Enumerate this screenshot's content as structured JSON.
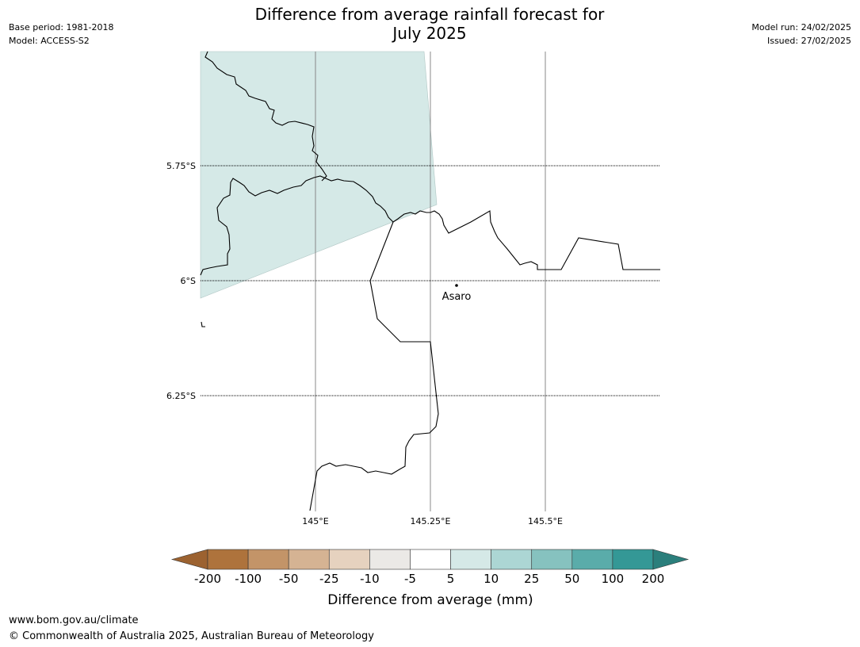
{
  "title_line1": "Difference from average rainfall forecast for",
  "title_line2": "July 2025",
  "meta_left": {
    "base_period": "Base period: 1981-2018",
    "model": "Model: ACCESS-S2"
  },
  "meta_right": {
    "model_run": "Model run: 24/02/2025",
    "issued": "Issued: 27/02/2025"
  },
  "map": {
    "lat_labels": [
      "5.75°S",
      "6°S",
      "6.25°S"
    ],
    "lon_labels": [
      "145°E",
      "145.25°E",
      "145.5°E"
    ],
    "place": "Asaro",
    "forecast_fill": "#d5e9e7"
  },
  "colorbar": {
    "label": "Difference from average (mm)",
    "ticks": [
      "-200",
      "-100",
      "-50",
      "-25",
      "-10",
      "-5",
      "5",
      "10",
      "25",
      "50",
      "100",
      "200"
    ],
    "colors": [
      "#9c6230",
      "#ae733c",
      "#c39468",
      "#d5b393",
      "#e6d2bf",
      "#ebe9e6",
      "#ffffff",
      "#d5e9e7",
      "#acd6d4",
      "#86c2bf",
      "#5aacaa",
      "#349896",
      "#2b7f7c"
    ]
  },
  "footer": {
    "url": "www.bom.gov.au/climate",
    "copyright": "© Commonwealth of Australia 2025, Australian Bureau of Meteorology"
  }
}
